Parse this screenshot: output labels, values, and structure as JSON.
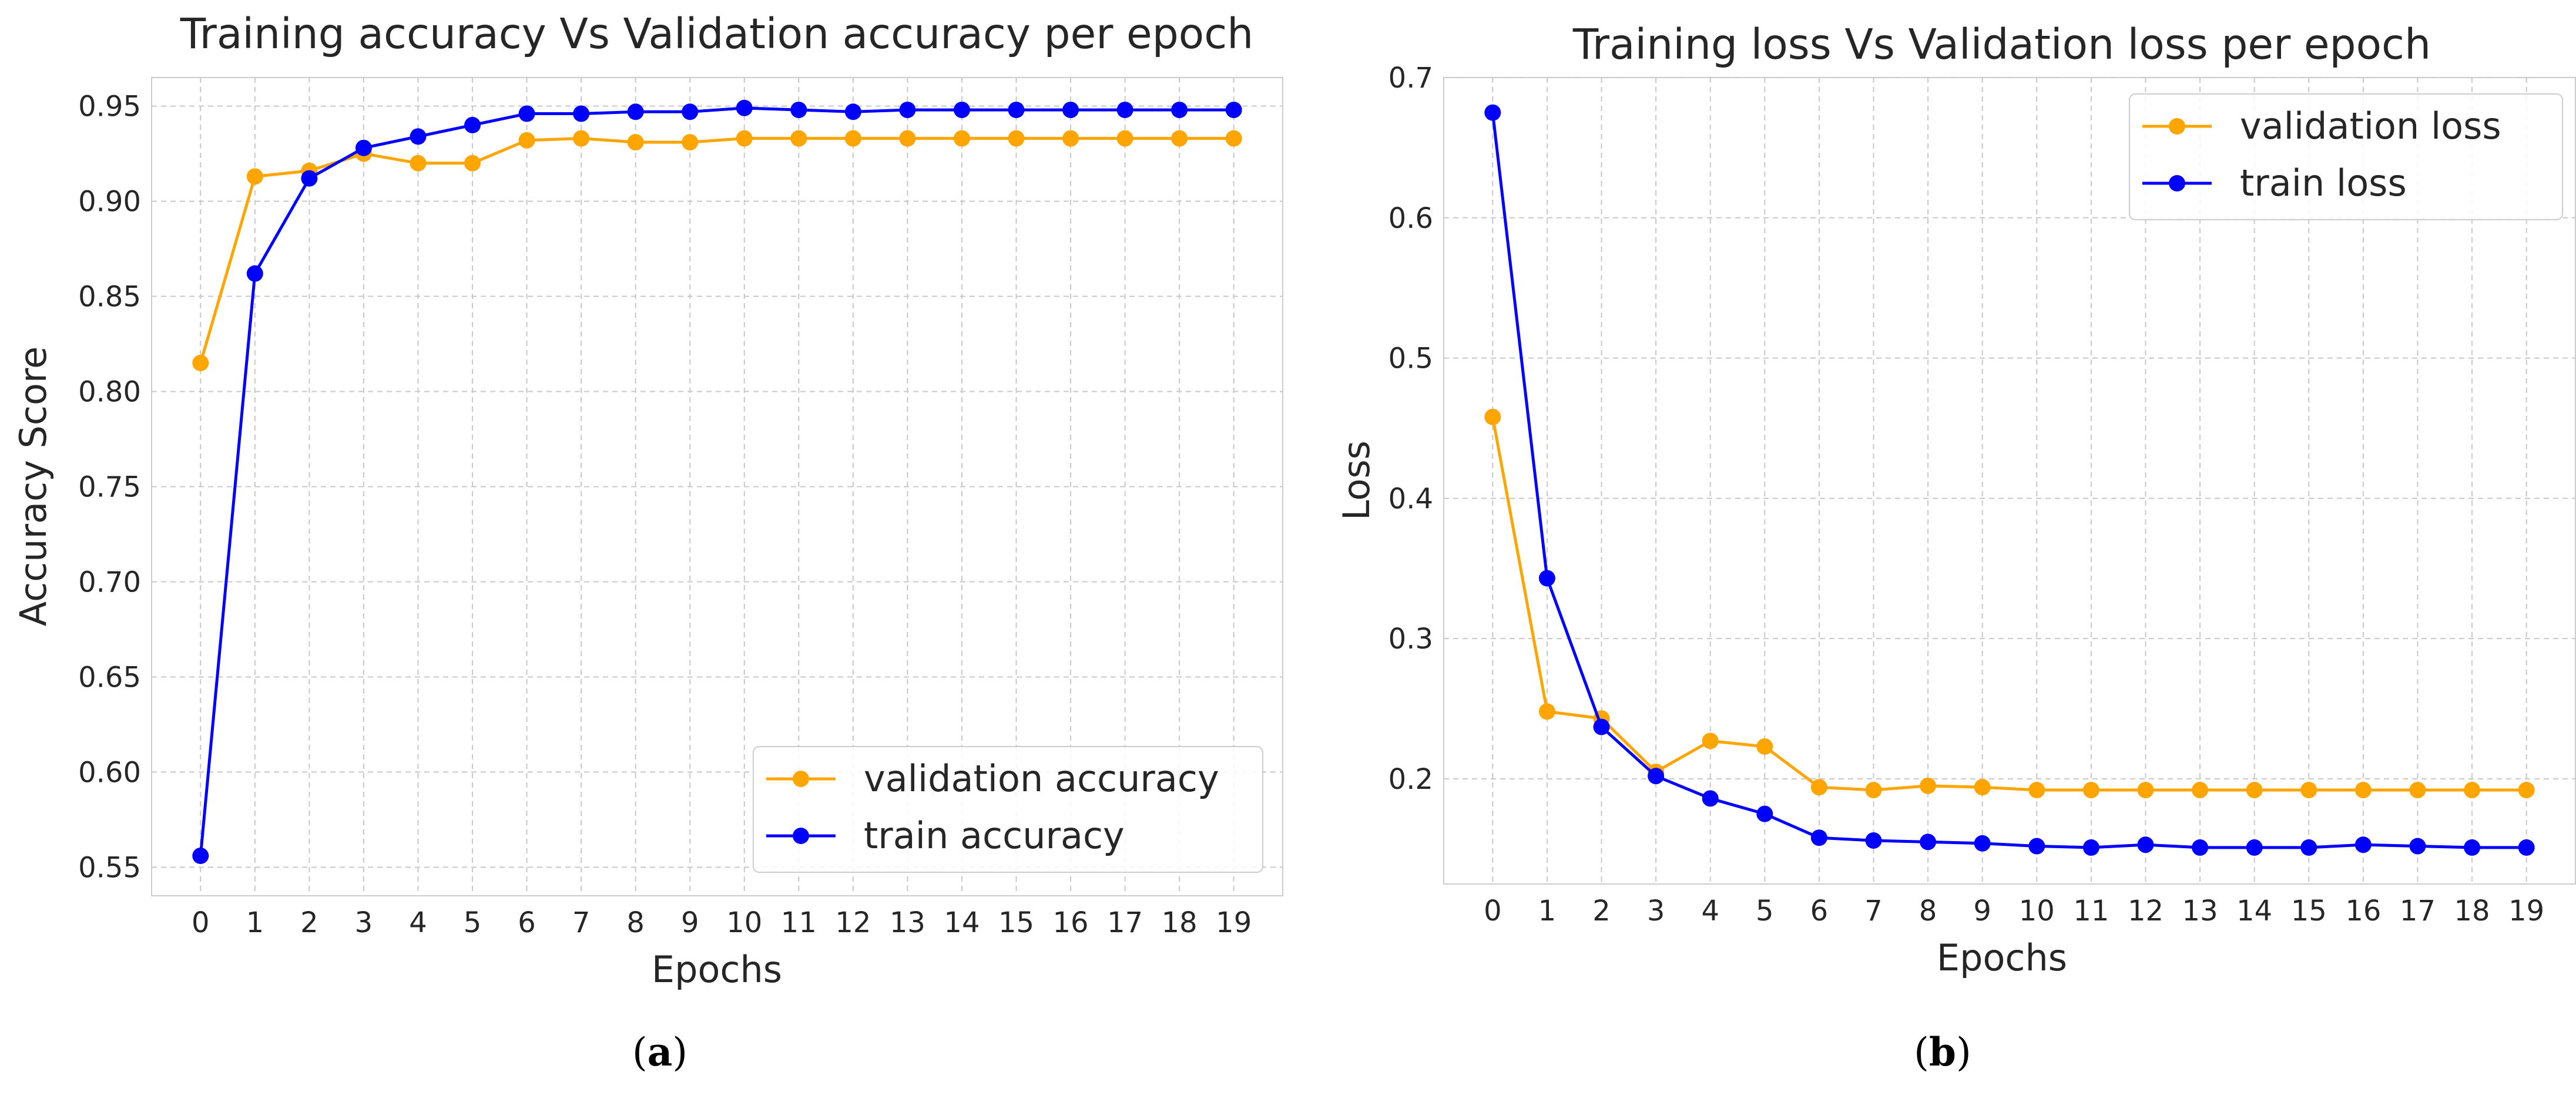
{
  "chart_data": [
    {
      "type": "line",
      "title": "Training accuracy Vs Validation accuracy per epoch",
      "xlabel": "Epochs",
      "ylabel": "Accuracy Score",
      "x": [
        0,
        1,
        2,
        3,
        4,
        5,
        6,
        7,
        8,
        9,
        10,
        11,
        12,
        13,
        14,
        15,
        16,
        17,
        18,
        19
      ],
      "xlim": [
        -0.9,
        19.9
      ],
      "ylim": [
        0.535,
        0.965
      ],
      "yticks": [
        "0.55",
        "0.60",
        "0.65",
        "0.70",
        "0.75",
        "0.80",
        "0.85",
        "0.90",
        "0.95"
      ],
      "grid": true,
      "legend_position": "bottom-right",
      "series": [
        {
          "name": "validation accuracy",
          "color": "#FFA500",
          "values": [
            0.815,
            0.913,
            0.916,
            0.925,
            0.92,
            0.92,
            0.932,
            0.933,
            0.931,
            0.931,
            0.933,
            0.933,
            0.933,
            0.933,
            0.933,
            0.933,
            0.933,
            0.933,
            0.933,
            0.933
          ]
        },
        {
          "name": "train accuracy",
          "color": "#0000FF",
          "values": [
            0.556,
            0.862,
            0.912,
            0.928,
            0.934,
            0.94,
            0.946,
            0.946,
            0.947,
            0.947,
            0.949,
            0.948,
            0.947,
            0.948,
            0.948,
            0.948,
            0.948,
            0.948,
            0.948,
            0.948
          ]
        }
      ],
      "caption": "(a)",
      "caption_bold": "a"
    },
    {
      "type": "line",
      "title": "Training loss Vs Validation loss per epoch",
      "xlabel": "Epochs",
      "ylabel": "Loss",
      "x": [
        0,
        1,
        2,
        3,
        4,
        5,
        6,
        7,
        8,
        9,
        10,
        11,
        12,
        13,
        14,
        15,
        16,
        17,
        18,
        19
      ],
      "xlim": [
        -0.9,
        19.9
      ],
      "ylim": [
        0.125,
        0.7
      ],
      "yticks": [
        "0.2",
        "0.3",
        "0.4",
        "0.5",
        "0.6",
        "0.7"
      ],
      "grid": true,
      "legend_position": "top-right",
      "series": [
        {
          "name": "validation loss",
          "color": "#FFA500",
          "values": [
            0.458,
            0.248,
            0.243,
            0.205,
            0.227,
            0.223,
            0.194,
            0.192,
            0.195,
            0.194,
            0.192,
            0.192,
            0.192,
            0.192,
            0.192,
            0.192,
            0.192,
            0.192,
            0.192,
            0.192
          ]
        },
        {
          "name": "train loss",
          "color": "#0000FF",
          "values": [
            0.675,
            0.343,
            0.237,
            0.202,
            0.186,
            0.175,
            0.158,
            0.156,
            0.155,
            0.154,
            0.152,
            0.151,
            0.153,
            0.151,
            0.151,
            0.151,
            0.153,
            0.152,
            0.151,
            0.151
          ]
        }
      ],
      "caption": "(b)",
      "caption_bold": "b"
    }
  ]
}
